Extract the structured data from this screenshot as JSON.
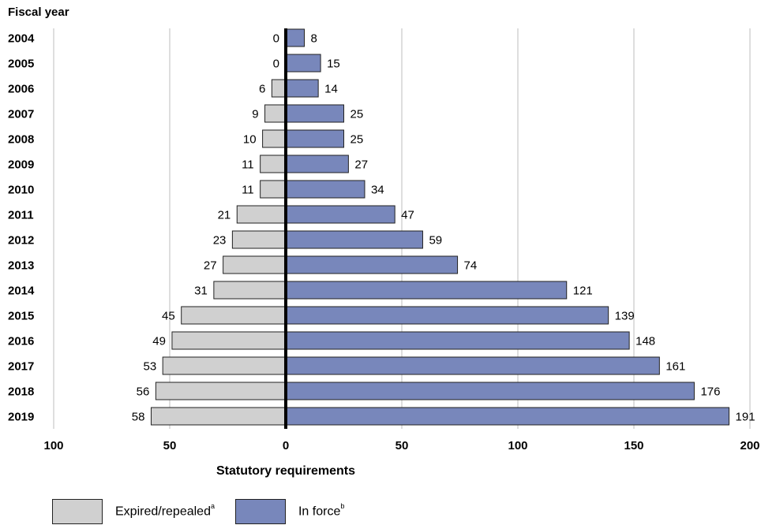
{
  "chart_data": {
    "type": "bar",
    "orientation": "horizontal-diverging",
    "ylabel": "Fiscal year",
    "xlabel": "Statutory requirements",
    "categories": [
      "2004",
      "2005",
      "2006",
      "2007",
      "2008",
      "2009",
      "2010",
      "2011",
      "2012",
      "2013",
      "2014",
      "2015",
      "2016",
      "2017",
      "2018",
      "2019"
    ],
    "series": [
      {
        "name": "Expired/repealed",
        "superscript": "a",
        "direction": "left",
        "color": "#d0d0d0",
        "values": [
          0,
          0,
          6,
          9,
          10,
          11,
          11,
          21,
          23,
          27,
          31,
          45,
          49,
          53,
          56,
          58
        ]
      },
      {
        "name": "In force",
        "superscript": "b",
        "direction": "right",
        "color": "#7887bb",
        "values": [
          8,
          15,
          14,
          25,
          25,
          27,
          34,
          47,
          59,
          74,
          121,
          139,
          148,
          161,
          176,
          191
        ]
      }
    ],
    "xlim": [
      -100,
      200
    ],
    "xticks": [
      -100,
      -50,
      0,
      50,
      100,
      150,
      200
    ],
    "xtick_labels": [
      "100",
      "50",
      "0",
      "50",
      "100",
      "150",
      "200"
    ],
    "grid": true,
    "legend_position": "bottom-left"
  }
}
